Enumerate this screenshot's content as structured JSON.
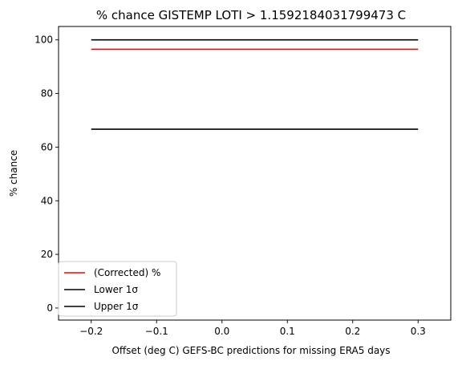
{
  "chart_data": {
    "type": "line",
    "title": "% chance GISTEMP LOTI > 1.1592184031799473 C",
    "xlabel": "Offset (deg C) GEFS-BC predictions for missing ERA5 days",
    "ylabel": "% chance",
    "xlim": [
      -0.25,
      0.35
    ],
    "ylim": [
      -4.5,
      105
    ],
    "xticks": [
      -0.2,
      -0.1,
      0.0,
      0.1,
      0.2,
      0.3
    ],
    "xtick_labels": [
      "−0.2",
      "−0.1",
      "0.0",
      "0.1",
      "0.2",
      "0.3"
    ],
    "yticks": [
      0,
      20,
      40,
      60,
      80,
      100
    ],
    "ytick_labels": [
      "0",
      "20",
      "40",
      "60",
      "80",
      "100"
    ],
    "grid": false,
    "legend_position": "lower-left",
    "series": [
      {
        "name": "(Corrected) %",
        "color": "#ff0000",
        "x": [
          -0.2,
          -0.1,
          0.0,
          0.1,
          0.2,
          0.3
        ],
        "y": [
          96.5,
          96.5,
          96.5,
          96.5,
          96.5,
          96.5
        ]
      },
      {
        "name": "Lower 1σ",
        "color": "#000000",
        "x": [
          -0.2,
          -0.1,
          0.0,
          0.1,
          0.2,
          0.3
        ],
        "y": [
          66.7,
          66.7,
          66.7,
          66.7,
          66.7,
          66.7
        ]
      },
      {
        "name": "Upper 1σ",
        "color": "#000000",
        "x": [
          -0.2,
          -0.1,
          0.0,
          0.1,
          0.2,
          0.3
        ],
        "y": [
          100,
          100,
          100,
          100,
          100,
          100
        ]
      }
    ]
  }
}
